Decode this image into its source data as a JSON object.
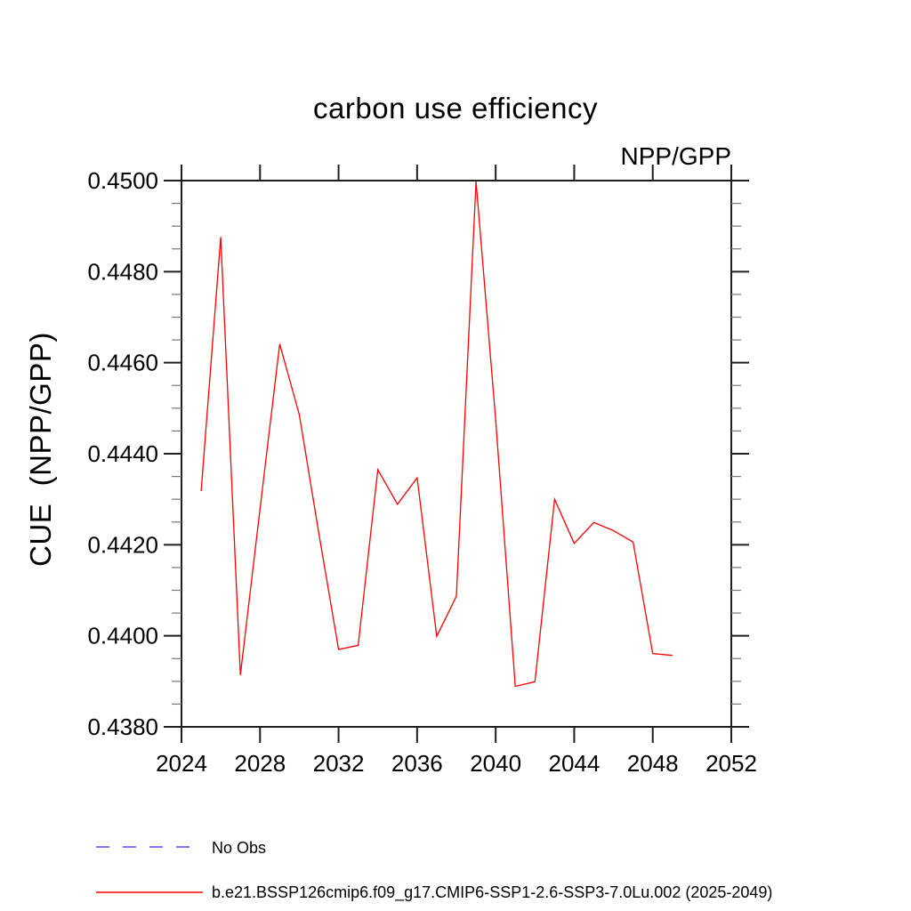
{
  "chart_data": {
    "type": "line",
    "title": "carbon use efficiency",
    "corner_label": "NPP/GPP",
    "ylabel": "CUE  (NPP/GPP)",
    "xlabel": "",
    "xlim": [
      2024,
      2052
    ],
    "ylim": [
      0.438,
      0.45
    ],
    "xticks": [
      2024,
      2028,
      2032,
      2036,
      2040,
      2044,
      2048,
      2052
    ],
    "xtick_labels": [
      "2024",
      "2028",
      "2032",
      "2036",
      "2040",
      "2044",
      "2048",
      "2052"
    ],
    "yticks": [
      0.438,
      0.44,
      0.442,
      0.444,
      0.446,
      0.448,
      0.45
    ],
    "ytick_labels": [
      "0.4380",
      "0.4400",
      "0.4420",
      "0.4440",
      "0.4460",
      "0.4480",
      "0.4500"
    ],
    "y_minor_step": 0.0005,
    "grid": false,
    "axis_color": "#1f1f1f",
    "x": [
      2025,
      2026,
      2027,
      2028,
      2029,
      2030,
      2031,
      2032,
      2033,
      2034,
      2035,
      2036,
      2037,
      2038,
      2039,
      2040,
      2041,
      2042,
      2043,
      2044,
      2045,
      2046,
      2047,
      2048,
      2049
    ],
    "series": [
      {
        "name": "b.e21.BSSP126cmip6.f09_g17.CMIP6-SSP1-2.6-SSP3-7.0Lu.002 (2025-2049)",
        "color": "#ff0000",
        "line_style": "solid",
        "values": [
          0.44318,
          0.44876,
          0.43914,
          0.44279,
          0.44641,
          0.44486,
          0.44224,
          0.4397,
          0.43979,
          0.44365,
          0.44289,
          0.44347,
          0.43999,
          0.44087,
          0.44998,
          0.44476,
          0.43889,
          0.43899,
          0.443,
          0.44203,
          0.44249,
          0.44231,
          0.44206,
          0.43961,
          0.43957
        ]
      }
    ],
    "legend_position": "bottom-left",
    "legend": [
      {
        "label": "No Obs",
        "color": "#7a7af8",
        "line_style": "dashed"
      },
      {
        "label": "b.e21.BSSP126cmip6.f09_g17.CMIP6-SSP1-2.6-SSP3-7.0Lu.002 (2025-2049)",
        "color": "#ff0000",
        "line_style": "solid"
      }
    ]
  }
}
